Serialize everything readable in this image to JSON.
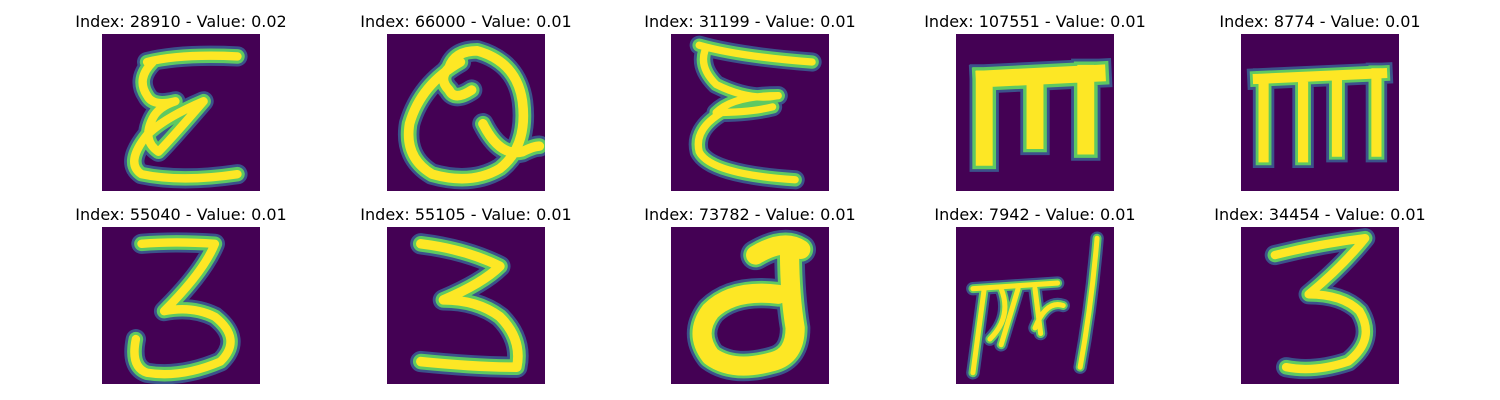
{
  "colors": {
    "background": "#440154",
    "stroke_core": "#fde725",
    "stroke_mid": "#5ec962",
    "stroke_edge": "#21918c",
    "stroke_fringe": "#3b528b"
  },
  "panels": [
    {
      "title": "Index: 28910 - Value: 0.02",
      "glyph": "epsilon-shape"
    },
    {
      "title": "Index: 66000 - Value: 0.01",
      "glyph": "q-shape"
    },
    {
      "title": "Index: 31199 - Value: 0.01",
      "glyph": "epsilon-shape"
    },
    {
      "title": "Index: 107551 - Value: 0.01",
      "glyph": "m-shape"
    },
    {
      "title": "Index: 8774 - Value: 0.01",
      "glyph": "m-shape"
    },
    {
      "title": "Index: 55040 - Value: 0.01",
      "glyph": "three-shape"
    },
    {
      "title": "Index: 55105 - Value: 0.01",
      "glyph": "three-shape"
    },
    {
      "title": "Index: 73782 - Value: 0.01",
      "glyph": "d-shape"
    },
    {
      "title": "Index: 7942 - Value: 0.01",
      "glyph": "script-shape"
    },
    {
      "title": "Index: 34454 - Value: 0.01",
      "glyph": "three-shape"
    }
  ]
}
